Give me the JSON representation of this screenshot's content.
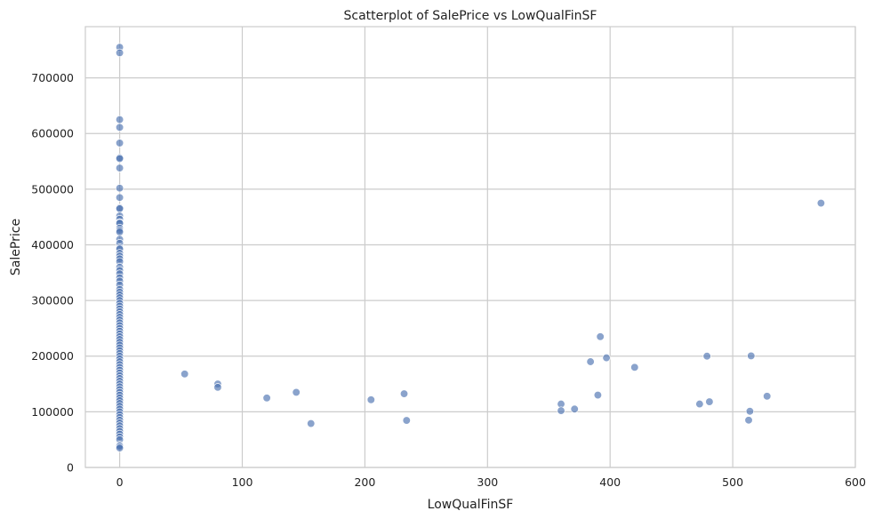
{
  "chart_data": {
    "type": "scatter",
    "title": "Scatterplot of SalePrice vs LowQualFinSF",
    "xlabel": "LowQualFinSF",
    "ylabel": "SalePrice",
    "xlim": [
      -28,
      600
    ],
    "ylim": [
      0,
      792000
    ],
    "xticks": [
      0,
      100,
      200,
      300,
      400,
      500,
      600
    ],
    "yticks": [
      0,
      100000,
      200000,
      300000,
      400000,
      500000,
      600000,
      700000
    ],
    "grid": true,
    "color": "#4c72b0",
    "series": [
      {
        "points": [
          [
            0,
            755000
          ],
          [
            0,
            745000
          ],
          [
            0,
            625000
          ],
          [
            0,
            611000
          ],
          [
            0,
            582933
          ],
          [
            0,
            556581
          ],
          [
            0,
            555000
          ],
          [
            0,
            538000
          ],
          [
            0,
            501837
          ],
          [
            0,
            485000
          ],
          [
            0,
            466500
          ],
          [
            0,
            465000
          ],
          [
            0,
            451950
          ],
          [
            0,
            446261
          ],
          [
            0,
            440000
          ],
          [
            0,
            438780
          ],
          [
            0,
            430000
          ],
          [
            0,
            426000
          ],
          [
            0,
            423000
          ],
          [
            0,
            410000
          ],
          [
            0,
            402861
          ],
          [
            0,
            394617
          ],
          [
            0,
            392500
          ],
          [
            0,
            385000
          ],
          [
            0,
            380000
          ],
          [
            0,
            375000
          ],
          [
            0,
            369900
          ],
          [
            0,
            360000
          ],
          [
            0,
            354000
          ],
          [
            0,
            348000
          ],
          [
            0,
            341000
          ],
          [
            0,
            335000
          ],
          [
            0,
            328000
          ],
          [
            0,
            320000
          ],
          [
            0,
            315000
          ],
          [
            0,
            310000
          ],
          [
            0,
            305000
          ],
          [
            0,
            300000
          ],
          [
            0,
            295000
          ],
          [
            0,
            290000
          ],
          [
            0,
            285000
          ],
          [
            0,
            280000
          ],
          [
            0,
            275000
          ],
          [
            0,
            270000
          ],
          [
            0,
            265000
          ],
          [
            0,
            260000
          ],
          [
            0,
            255000
          ],
          [
            0,
            250000
          ],
          [
            0,
            245000
          ],
          [
            0,
            240000
          ],
          [
            0,
            235000
          ],
          [
            0,
            230000
          ],
          [
            0,
            225000
          ],
          [
            0,
            220000
          ],
          [
            0,
            215000
          ],
          [
            0,
            210000
          ],
          [
            0,
            205000
          ],
          [
            0,
            200000
          ],
          [
            0,
            195000
          ],
          [
            0,
            190000
          ],
          [
            0,
            185000
          ],
          [
            0,
            180000
          ],
          [
            0,
            175000
          ],
          [
            0,
            170000
          ],
          [
            0,
            165000
          ],
          [
            0,
            160000
          ],
          [
            0,
            155000
          ],
          [
            0,
            150000
          ],
          [
            0,
            145000
          ],
          [
            0,
            140000
          ],
          [
            0,
            135000
          ],
          [
            0,
            130000
          ],
          [
            0,
            125000
          ],
          [
            0,
            120000
          ],
          [
            0,
            115000
          ],
          [
            0,
            110000
          ],
          [
            0,
            105000
          ],
          [
            0,
            100000
          ],
          [
            0,
            95000
          ],
          [
            0,
            90000
          ],
          [
            0,
            85000
          ],
          [
            0,
            80000
          ],
          [
            0,
            75000
          ],
          [
            0,
            70000
          ],
          [
            0,
            65000
          ],
          [
            0,
            60000
          ],
          [
            0,
            55000
          ],
          [
            0,
            50000
          ],
          [
            0,
            40000
          ],
          [
            0,
            37900
          ],
          [
            0,
            34900
          ],
          [
            53,
            168000
          ],
          [
            80,
            150000
          ],
          [
            80,
            144000
          ],
          [
            120,
            124900
          ],
          [
            144,
            135000
          ],
          [
            156,
            79000
          ],
          [
            205,
            121600
          ],
          [
            232,
            132500
          ],
          [
            234,
            84500
          ],
          [
            360,
            114000
          ],
          [
            360,
            102000
          ],
          [
            371,
            105000
          ],
          [
            384,
            190000
          ],
          [
            390,
            130000
          ],
          [
            392,
            235000
          ],
          [
            397,
            197000
          ],
          [
            420,
            179900
          ],
          [
            473,
            114000
          ],
          [
            479,
            200000
          ],
          [
            481,
            118000
          ],
          [
            513,
            85000
          ],
          [
            514,
            101000
          ],
          [
            515,
            200500
          ],
          [
            528,
            128000
          ],
          [
            572,
            475000
          ]
        ]
      }
    ]
  }
}
